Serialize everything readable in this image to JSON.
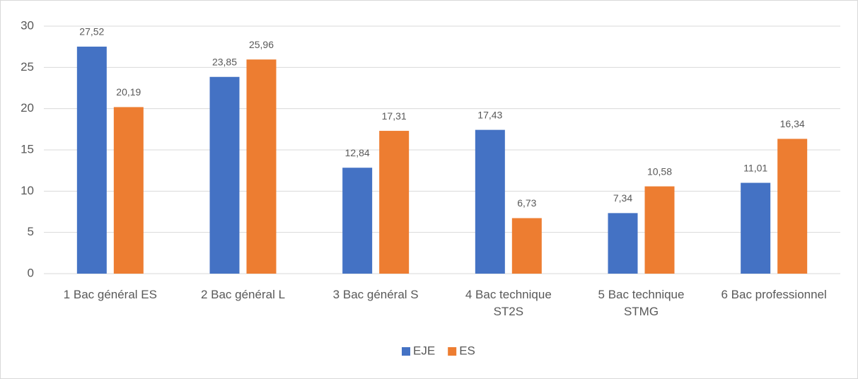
{
  "chart_data": {
    "type": "bar",
    "categories": [
      "1 Bac général ES",
      "2 Bac général L",
      "3 Bac général S",
      "4 Bac technique ST2S",
      "5 Bac  technique STMG",
      "6 Bac professionnel"
    ],
    "series": [
      {
        "name": "EJE",
        "color": "#4472c4",
        "values": [
          27.52,
          23.85,
          12.84,
          17.43,
          7.34,
          11.01
        ],
        "value_labels": [
          "27,52",
          "23,85",
          "12,84",
          "17,43",
          "7,34",
          "11,01"
        ]
      },
      {
        "name": "ES",
        "color": "#ed7d31",
        "values": [
          20.19,
          25.96,
          17.31,
          6.73,
          10.58,
          16.34
        ],
        "value_labels": [
          "20,19",
          "25,96",
          "17,31",
          "6,73",
          "10,58",
          "16,34"
        ]
      }
    ],
    "ylim": [
      0,
      30
    ],
    "yticks": [
      0,
      5,
      10,
      15,
      20,
      25,
      30
    ],
    "grid": true,
    "legend": "bottom"
  }
}
